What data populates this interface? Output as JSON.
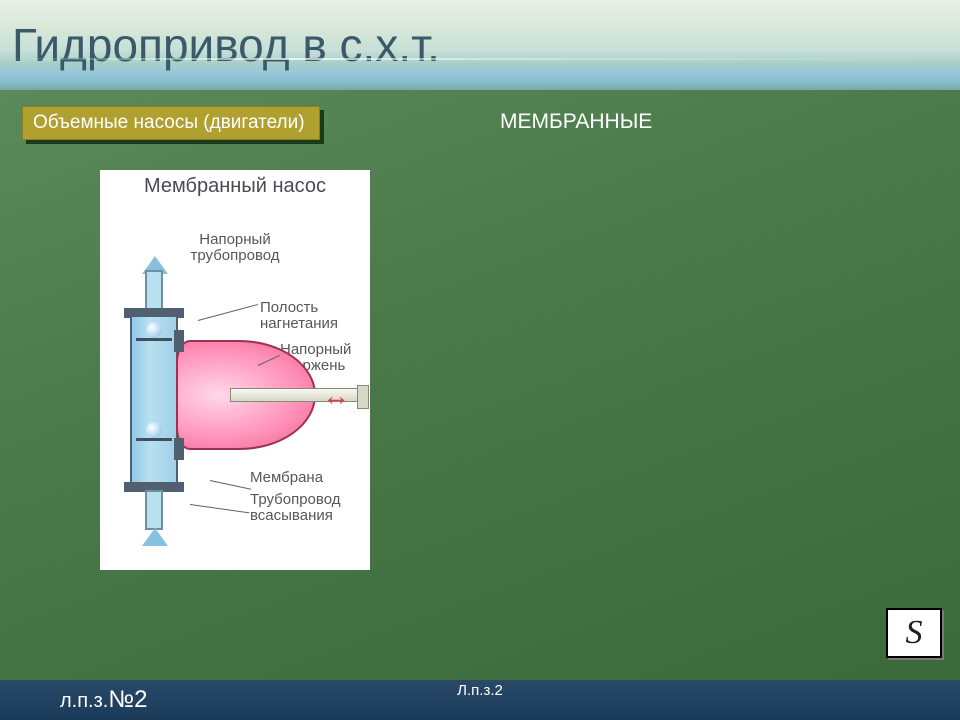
{
  "header": {
    "title": "Гидропривод в с.х.т.",
    "title_color": "#3a5a6a",
    "title_fontsize": 46,
    "bg_gradient": [
      "#e8f0e8",
      "#78a8a8"
    ]
  },
  "chip": {
    "label": "Объемные насосы (двигатели)",
    "bg": "#b0a030",
    "text_color": "#ffffff",
    "fontsize": 19
  },
  "subtitle": {
    "text": "МЕМБРАННЫЕ",
    "color": "#ffffff",
    "fontsize": 21
  },
  "content": {
    "bg_gradient": [
      "#5a8a5a",
      "#3a6a3a"
    ]
  },
  "diagram": {
    "bg": "#ffffff",
    "title": "Мембранный насос",
    "labels": {
      "napor_trub": "Напорный трубопровод",
      "polost": "Полость нагнетания",
      "sterzh": "Напорный стержень",
      "membrana": "Мембрана",
      "trub_vsas": "Трубопровод всасывания"
    },
    "colors": {
      "cylinder_fill": "#a0d0e8",
      "cylinder_stroke": "#506070",
      "diaphragm_fill": "#ff90b8",
      "diaphragm_stroke": "#a03050",
      "rod_fill": "#d8d8c8",
      "arrow_flow": "#88c0e0",
      "arrow_rod": "#e04040",
      "label_text": "#56565e"
    }
  },
  "footer": {
    "left_prefix": "л.п.з.",
    "left_number": "№2",
    "center": "Л.п.з.2",
    "bg_gradient": [
      "#2a4a6a",
      "#1a3a5a"
    ],
    "text_color": "#ffffff"
  },
  "logo": {
    "glyph": "S",
    "bg": "#ffffff",
    "border": "#000000"
  }
}
